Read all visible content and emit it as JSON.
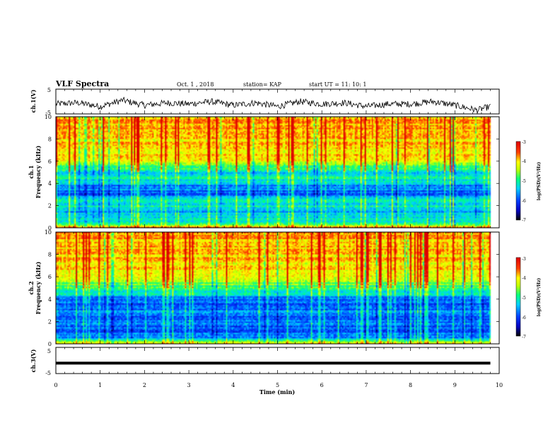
{
  "header": {
    "title": "VLF Spectra",
    "date": "Oct. 1  , 2018",
    "station": "station= KAP",
    "start": "start  UT =   11: 10: 1"
  },
  "chart_data": [
    {
      "type": "line",
      "panel": "ch1-waveform",
      "ylabel": "ch.1(V)",
      "ylim": [
        -5,
        5
      ],
      "yticks": [
        "5",
        "-5"
      ],
      "xlim": [
        0,
        10
      ],
      "approx_trace": {
        "x": [
          0,
          0.5,
          1,
          1.5,
          2,
          2.5,
          3,
          3.5,
          4,
          4.5,
          5,
          5.5,
          6,
          6.5,
          7,
          7.5,
          8,
          8.5,
          9,
          9.5,
          9.8
        ],
        "y": [
          -1,
          -0.5,
          -2,
          0.5,
          -1.5,
          -0.5,
          -1,
          0,
          -1.5,
          -0.5,
          -2,
          0,
          -1,
          -0.5,
          -2,
          -1,
          -1,
          0,
          -1.5,
          -3.5,
          -2
        ]
      }
    },
    {
      "type": "heatmap",
      "panel": "ch1-spectrogram",
      "ylabel": "ch.1\nFrequency (kHz)",
      "yticks": [
        "0",
        "2",
        "4",
        "6",
        "8",
        "10"
      ],
      "ylim": [
        0,
        10
      ],
      "xlim": [
        0,
        10
      ],
      "colorbar": {
        "label": "log(PSD)(V²/Hz)",
        "ticks": [
          "-3",
          "-4",
          "-5",
          "-6",
          "-7"
        ],
        "range": [
          -7,
          -3
        ]
      },
      "band_levels": {
        "freq_khz": [
          0,
          0.5,
          1,
          1.5,
          2,
          2.5,
          3,
          3.5,
          4,
          4.5,
          5,
          5.5,
          6,
          6.5,
          7,
          7.5,
          8,
          8.5,
          9,
          9.5,
          10
        ],
        "log_psd": [
          -3.6,
          -5.3,
          -5.3,
          -5.6,
          -5.2,
          -5.3,
          -6.1,
          -5.8,
          -5.6,
          -5.2,
          -5.4,
          -4.9,
          -4.3,
          -4.1,
          -4.0,
          -4.0,
          -4.0,
          -3.9,
          -3.9,
          -3.9,
          -4.0
        ]
      }
    },
    {
      "type": "heatmap",
      "panel": "ch2-spectrogram",
      "ylabel": "ch.2\nFrequency (kHz)",
      "yticks": [
        "0",
        "2",
        "4",
        "6",
        "8",
        "10"
      ],
      "ylim": [
        0,
        10
      ],
      "xlim": [
        0,
        10
      ],
      "colorbar": {
        "label": "log(PSD)(V²/Hz)",
        "ticks": [
          "-3",
          "-4",
          "-5",
          "-6",
          "-7"
        ],
        "range": [
          -7,
          -3
        ]
      },
      "band_levels": {
        "freq_khz": [
          0,
          0.5,
          1,
          1.5,
          2,
          2.5,
          3,
          3.5,
          4,
          4.5,
          5,
          5.5,
          6,
          6.5,
          7,
          7.5,
          8,
          8.5,
          9,
          9.5,
          10
        ],
        "log_psd": [
          -3.8,
          -5.8,
          -5.9,
          -6.1,
          -5.7,
          -6.0,
          -5.8,
          -6.0,
          -5.9,
          -5.3,
          -5.0,
          -4.6,
          -4.4,
          -4.2,
          -4.1,
          -4.0,
          -4.0,
          -4.0,
          -3.9,
          -3.9,
          -4.0
        ]
      }
    },
    {
      "type": "line",
      "panel": "ch3-waveform",
      "ylabel": "ch.3(V)",
      "ylim": [
        -5,
        5
      ],
      "yticks": [
        "5",
        "-5"
      ],
      "xlim": [
        0,
        10
      ],
      "approx_trace": {
        "x": [
          0,
          9.8
        ],
        "y": [
          -1,
          -1
        ]
      }
    }
  ],
  "xaxis": {
    "label": "Time  (min)",
    "ticks": [
      "0",
      "1",
      "2",
      "3",
      "4",
      "5",
      "6",
      "7",
      "8",
      "9",
      "10"
    ]
  },
  "colors": {
    "colormap": [
      "#000080",
      "#0000ff",
      "#00c8ff",
      "#00ff80",
      "#c0ff00",
      "#ffff00",
      "#ff8000",
      "#ff0000",
      "#a00000"
    ],
    "trace": "#000000"
  }
}
